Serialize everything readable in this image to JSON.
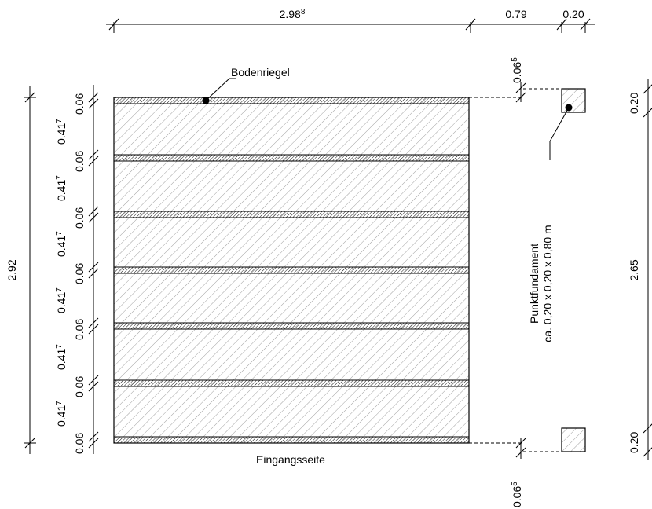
{
  "top_dims": {
    "main_length": "2.98",
    "main_length_sup": "8",
    "gap": "0.79",
    "post_width": "0.20"
  },
  "left_dims": {
    "total": "2.92",
    "beam": "0.06",
    "panel": "0.41",
    "panel_sup": "7"
  },
  "right_dims": {
    "post_top": "0.20",
    "span": "2.65",
    "post_bottom": "0.20"
  },
  "offsets": {
    "top": "0.06",
    "top_sup": "5",
    "bottom": "0.06",
    "bottom_sup": "5"
  },
  "labels": {
    "bodenriegel": "Bodenriegel",
    "entrance": "Eingangsseite",
    "foundation_title": "Punktfundament",
    "foundation_size": "ca. 0,20 x 0,20 x 0,80 m"
  }
}
